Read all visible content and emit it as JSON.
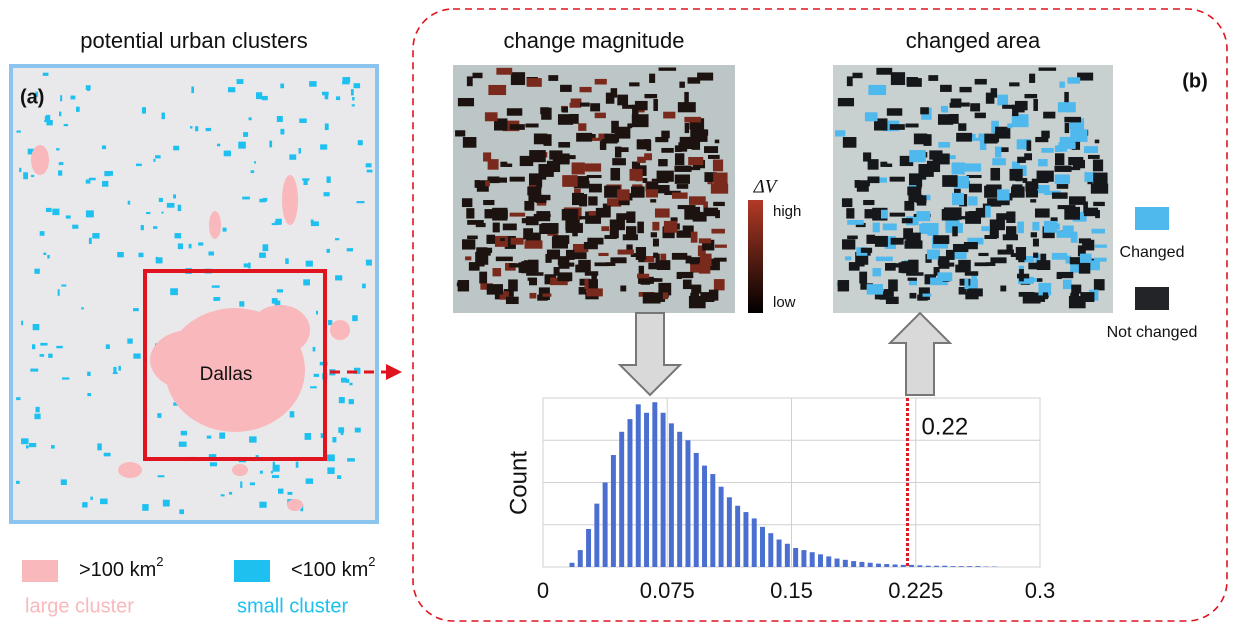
{
  "panel_a": {
    "title": "potential urban clusters",
    "label": "(a)",
    "city": "Dallas",
    "legend": [
      {
        "text": ">100 km",
        "sup": "2",
        "caption": "large cluster",
        "color": "#f9b8bc"
      },
      {
        "text": "<100 km",
        "sup": "2",
        "caption": "small cluster",
        "color": "#1ec0f0"
      }
    ]
  },
  "panel_b": {
    "label": "(b)",
    "image_1_title": "change magnitude",
    "image_2_title": "changed area",
    "colorbar": {
      "title": "ΔV",
      "high": "high",
      "low": "low"
    },
    "legend": [
      {
        "text": "Changed",
        "color": "#4fb8ec"
      },
      {
        "text": "Not changed",
        "color": "#222428"
      }
    ]
  },
  "chart_data": {
    "type": "histogram",
    "ylabel": "Count",
    "color": "#4a6fd0",
    "bins": [
      0.015,
      0.02,
      0.025,
      0.03,
      0.035,
      0.04,
      0.045,
      0.05,
      0.055,
      0.06,
      0.065,
      0.07,
      0.075,
      0.08,
      0.085,
      0.09,
      0.095,
      0.1,
      0.105,
      0.11,
      0.115,
      0.12,
      0.125,
      0.13,
      0.135,
      0.14,
      0.145,
      0.15,
      0.155,
      0.16,
      0.165,
      0.17,
      0.175,
      0.18,
      0.185,
      0.19,
      0.195,
      0.2,
      0.205,
      0.21,
      0.215,
      0.22,
      0.225,
      0.23,
      0.235,
      0.24,
      0.245,
      0.25,
      0.255,
      0.26,
      0.265,
      0.27,
      0.275
    ],
    "values": [
      0.1,
      0.4,
      0.9,
      1.5,
      2.0,
      2.65,
      3.2,
      3.5,
      3.85,
      3.65,
      3.9,
      3.65,
      3.4,
      3.2,
      3.0,
      2.7,
      2.4,
      2.2,
      1.9,
      1.65,
      1.45,
      1.3,
      1.15,
      0.95,
      0.8,
      0.65,
      0.55,
      0.45,
      0.4,
      0.35,
      0.3,
      0.25,
      0.2,
      0.17,
      0.14,
      0.12,
      0.1,
      0.08,
      0.07,
      0.06,
      0.05,
      0.05,
      0.04,
      0.03,
      0.03,
      0.03,
      0.02,
      0.02,
      0.02,
      0.02,
      0.01,
      0.01
    ],
    "xlim": [
      0,
      0.3
    ],
    "xticks": [
      0,
      0.075,
      0.15,
      0.225,
      0.3
    ],
    "ylim": [
      0,
      4
    ],
    "yticks": [
      0,
      1,
      2,
      3,
      4
    ],
    "grid": true,
    "threshold": {
      "value": 0.22,
      "label": "0.22",
      "color": "#e0141e"
    }
  }
}
